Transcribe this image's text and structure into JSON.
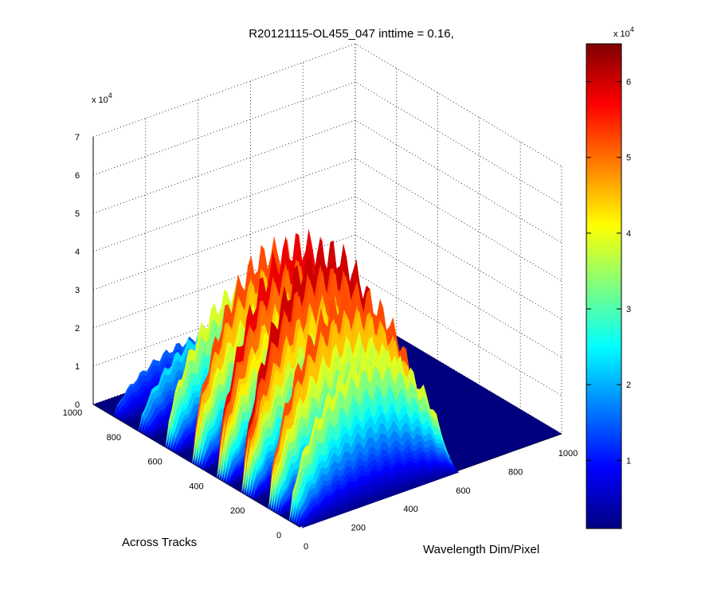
{
  "chart_data": {
    "type": "surface3d",
    "title": "R20121115-OL455_047 inttime = 0.16,",
    "xlabel": "Wavelength Dim/Pixel",
    "ylabel": "Across Tracks",
    "zlabel": "",
    "x_ticks": [
      "0",
      "200",
      "400",
      "600",
      "800",
      "1000"
    ],
    "y_ticks": [
      "0",
      "200",
      "400",
      "600",
      "800",
      "1000"
    ],
    "z_ticks": [
      "0",
      "1",
      "2",
      "3",
      "4",
      "5",
      "6",
      "7"
    ],
    "z_exponent": "x 10",
    "z_exponent_power": "4",
    "xlim": [
      0,
      1000
    ],
    "ylim": [
      0,
      1000
    ],
    "zlim": [
      0,
      70000
    ],
    "grid": true,
    "colormap": "jet",
    "colorbar": {
      "ticks": [
        "1",
        "2",
        "3",
        "4",
        "5",
        "6"
      ],
      "exponent": "x 10",
      "exponent_power": "4",
      "range": [
        1000,
        65000
      ]
    },
    "surface": {
      "x_extent": [
        0,
        600
      ],
      "y_extent": [
        0,
        1000
      ],
      "description_ridges": [
        {
          "y": 900,
          "peak": 14000
        },
        {
          "y": 780,
          "peak": 22000
        },
        {
          "y": 650,
          "peak": 38000
        },
        {
          "y": 520,
          "peak": 52000
        },
        {
          "y": 400,
          "peak": 58000
        },
        {
          "y": 280,
          "peak": 60000
        },
        {
          "y": 150,
          "peak": 52000
        },
        {
          "y": 50,
          "peak": 38000
        }
      ]
    },
    "colors": {
      "floor": "#00007f",
      "background": "#ffffff",
      "grid": "#000000"
    }
  }
}
